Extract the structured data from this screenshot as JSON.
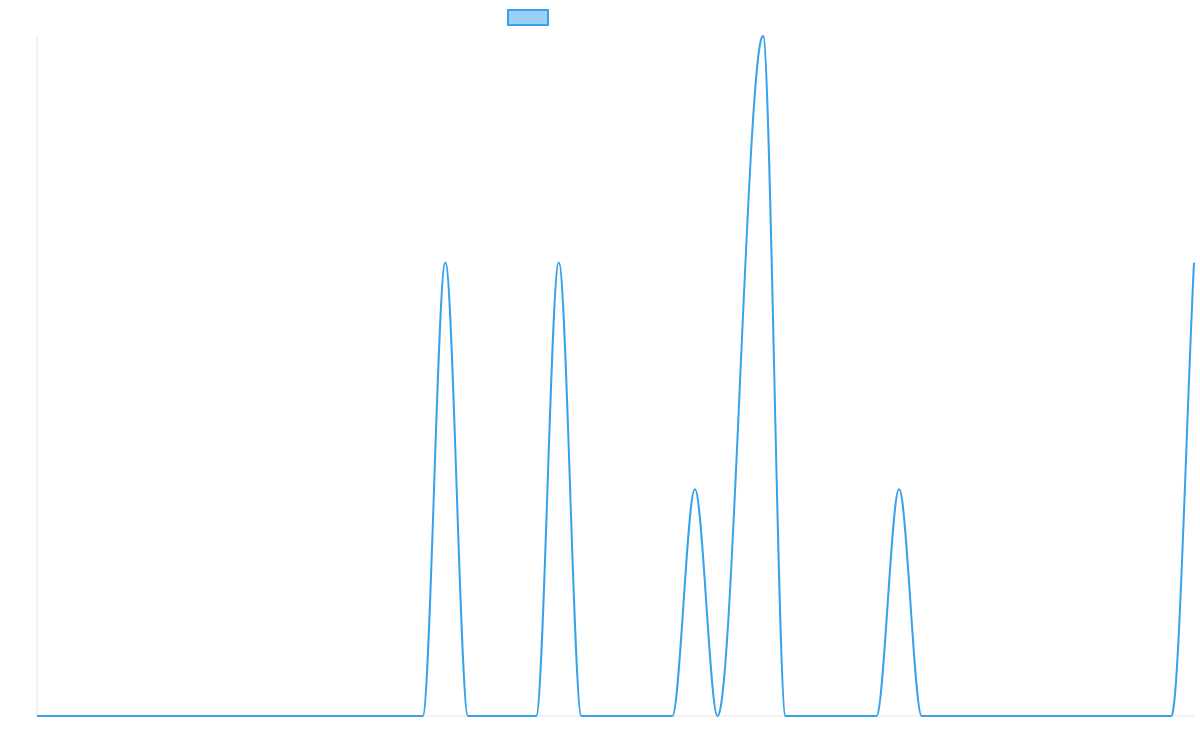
{
  "chart_data": {
    "type": "line",
    "title": "",
    "xlabel": "",
    "ylabel": "",
    "xlim": [
      0,
      51
    ],
    "ylim": [
      0,
      3
    ],
    "grid": false,
    "legend": "top-center",
    "series": [
      {
        "name": "",
        "line_color": "#36a2eb",
        "fill_color": "#9ad0f5",
        "points": [
          [
            0,
            0
          ],
          [
            17,
            0
          ],
          [
            18,
            2
          ],
          [
            19,
            0
          ],
          [
            22,
            0
          ],
          [
            23,
            2
          ],
          [
            24,
            0
          ],
          [
            28,
            0
          ],
          [
            29,
            1
          ],
          [
            30,
            0
          ],
          [
            32,
            3
          ],
          [
            33,
            0
          ],
          [
            37,
            0
          ],
          [
            38,
            1
          ],
          [
            39,
            0
          ],
          [
            50,
            0
          ],
          [
            51,
            2
          ]
        ]
      }
    ]
  }
}
